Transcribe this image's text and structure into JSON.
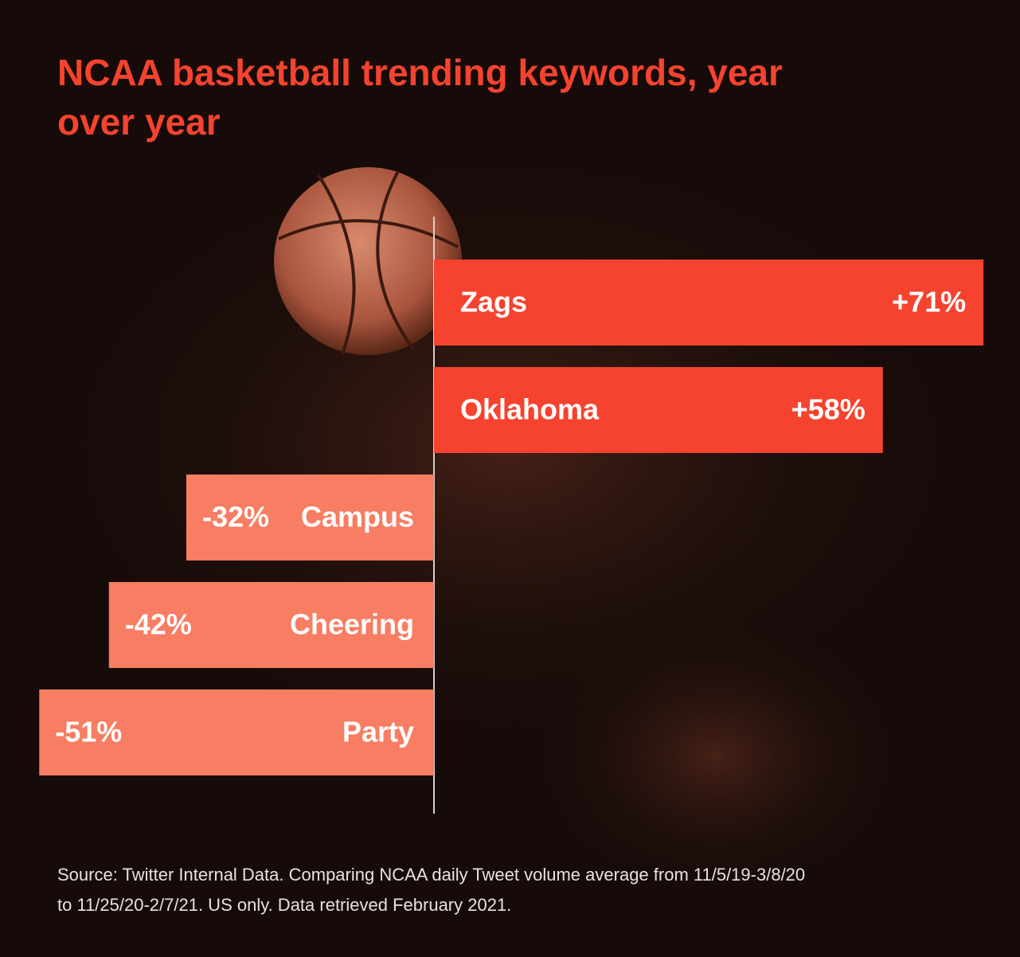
{
  "chart_data": {
    "type": "diverging-bar",
    "title": "NCAA basketball trending keywords, year over year",
    "categories": [
      "Zags",
      "Oklahoma",
      "Campus",
      "Cheering",
      "Party"
    ],
    "values": [
      71,
      58,
      -32,
      -42,
      -51
    ],
    "value_labels": [
      "+71%",
      "+58%",
      "-32%",
      "-42%",
      "-51%"
    ],
    "positive_color": "#f5432f",
    "negative_color": "#f77d63",
    "source": [
      "Source: Twitter Internal Data. Comparing NCAA daily Tweet volume average from 11/5/19-3/8/20",
      "to 11/25/20-2/7/21. US only. Data retrieved February 2021."
    ]
  }
}
